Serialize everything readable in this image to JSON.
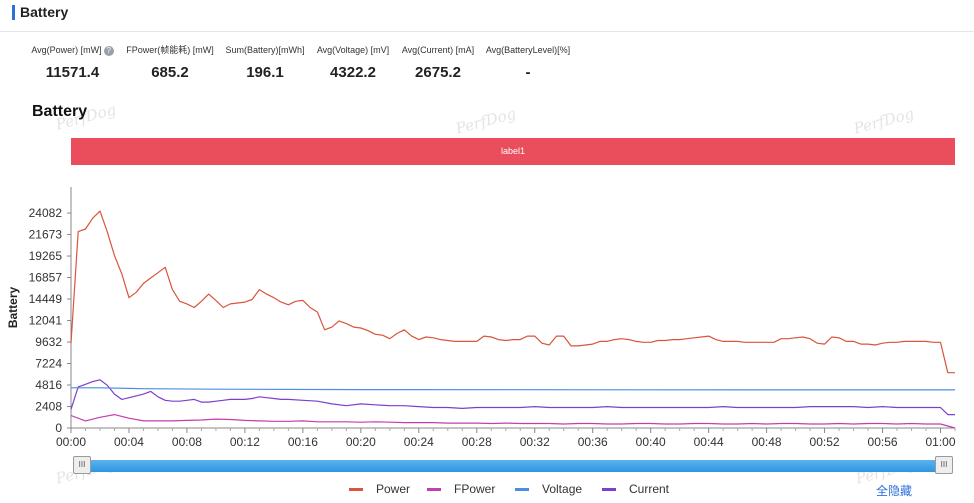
{
  "header": {
    "title": "Battery"
  },
  "stats": [
    {
      "label": "Avg(Power) [mW]",
      "value": "11571.4",
      "help": true
    },
    {
      "label": "FPower(帧能耗) [mW]",
      "value": "685.2"
    },
    {
      "label": "Sum(Battery)[mWh]",
      "value": "196.1"
    },
    {
      "label": "Avg(Voltage) [mV]",
      "value": "4322.2"
    },
    {
      "label": "Avg(Current) [mA]",
      "value": "2675.2"
    },
    {
      "label": "Avg(BatteryLevel)[%]",
      "value": "-"
    }
  ],
  "help_icon_glyph": "?",
  "watermark_text": "PerfDog",
  "label_band": {
    "text": "label1",
    "color": "#ea4d5c"
  },
  "chart_data": {
    "type": "line",
    "title": "Battery",
    "ylabel": "Battery",
    "xlabel": "",
    "x_ticks": [
      "00:00",
      "00:04",
      "00:08",
      "00:12",
      "00:16",
      "00:20",
      "00:24",
      "00:28",
      "00:32",
      "00:36",
      "00:40",
      "00:44",
      "00:48",
      "00:52",
      "00:56",
      "01:00"
    ],
    "y_ticks": [
      0,
      2408,
      4816,
      7224,
      9632,
      12041,
      14449,
      16857,
      19265,
      21673,
      24082
    ],
    "ylim": [
      0,
      27000
    ],
    "xlim_seconds": [
      0,
      61
    ],
    "grid": false,
    "legend_position": "bottom",
    "series": [
      {
        "name": "Power",
        "color": "#d9553b",
        "x": [
          0,
          0.5,
          1,
          1.5,
          2,
          2.5,
          3,
          3.5,
          4,
          4.5,
          5,
          5.5,
          6,
          6.5,
          7,
          7.5,
          8,
          8.5,
          9,
          9.5,
          10,
          10.5,
          11,
          11.5,
          12,
          12.5,
          13,
          13.5,
          14,
          14.5,
          15,
          15.5,
          16,
          16.5,
          17,
          17.5,
          18,
          18.5,
          19,
          19.5,
          20,
          20.5,
          21,
          21.5,
          22,
          22.5,
          23,
          23.5,
          24,
          24.5,
          25,
          25.5,
          26,
          26.5,
          27,
          27.5,
          28,
          28.5,
          29,
          29.5,
          30,
          30.5,
          31,
          31.5,
          32,
          32.5,
          33,
          33.5,
          34,
          34.5,
          35,
          35.5,
          36,
          36.5,
          37,
          37.5,
          38,
          38.5,
          39,
          39.5,
          40,
          40.5,
          41,
          41.5,
          42,
          42.5,
          43,
          43.5,
          44,
          44.5,
          45,
          45.5,
          46,
          46.5,
          47,
          47.5,
          48,
          48.5,
          49,
          49.5,
          50,
          50.5,
          51,
          51.5,
          52,
          52.5,
          53,
          53.5,
          54,
          54.5,
          55,
          55.5,
          56,
          56.5,
          57,
          57.5,
          58,
          58.5,
          59,
          59.5,
          60,
          60.5,
          61
        ],
        "values": [
          9500,
          22000,
          22300,
          23500,
          24300,
          22000,
          19300,
          17300,
          14600,
          15200,
          16200,
          16800,
          17400,
          18000,
          15500,
          14200,
          13900,
          13500,
          14200,
          15000,
          14300,
          13500,
          13900,
          14000,
          14100,
          14400,
          15500,
          15000,
          14600,
          14100,
          13800,
          14200,
          14300,
          13500,
          13000,
          11000,
          11300,
          12000,
          11700,
          11300,
          11200,
          10900,
          10500,
          10400,
          10000,
          10600,
          11000,
          10300,
          9900,
          10200,
          10100,
          9900,
          9800,
          9700,
          9700,
          9700,
          9700,
          10300,
          10200,
          9900,
          9800,
          9900,
          9900,
          10300,
          10300,
          9500,
          9300,
          10300,
          10300,
          9200,
          9200,
          9300,
          9400,
          9700,
          9700,
          9900,
          10000,
          9900,
          9700,
          9600,
          9600,
          9800,
          9800,
          9900,
          9900,
          10000,
          10100,
          10200,
          10300,
          9900,
          9700,
          9700,
          9700,
          9600,
          9600,
          9600,
          9600,
          9600,
          10000,
          10000,
          10100,
          10200,
          10000,
          9500,
          9400,
          10200,
          10100,
          9700,
          9700,
          9400,
          9400,
          9300,
          9500,
          9600,
          9600,
          9700,
          9700,
          9700,
          9700,
          9600,
          9600,
          6200,
          6200
        ]
      },
      {
        "name": "FPower",
        "color": "#c23fb0",
        "x": [
          0,
          1,
          2,
          3,
          4,
          5,
          6,
          7,
          8,
          9,
          10,
          11,
          12,
          13,
          14,
          15,
          16,
          17,
          18,
          19,
          20,
          21,
          22,
          23,
          24,
          25,
          26,
          27,
          28,
          29,
          30,
          31,
          32,
          33,
          34,
          35,
          36,
          37,
          38,
          39,
          40,
          41,
          42,
          43,
          44,
          45,
          46,
          47,
          48,
          49,
          50,
          51,
          52,
          53,
          54,
          55,
          56,
          57,
          58,
          59,
          60,
          61
        ],
        "values": [
          1400,
          800,
          1200,
          1500,
          1100,
          800,
          800,
          800,
          850,
          900,
          1000,
          950,
          850,
          800,
          750,
          750,
          800,
          700,
          700,
          700,
          650,
          700,
          650,
          600,
          600,
          600,
          550,
          550,
          550,
          500,
          550,
          500,
          500,
          500,
          450,
          500,
          500,
          450,
          450,
          500,
          500,
          450,
          450,
          500,
          500,
          450,
          450,
          500,
          450,
          500,
          500,
          450,
          450,
          500,
          450,
          500,
          500,
          450,
          500,
          450,
          450,
          0
        ]
      },
      {
        "name": "Voltage",
        "color": "#4a8ee6",
        "x": [
          0,
          2,
          5,
          10,
          20,
          30,
          40,
          50,
          61
        ],
        "values": [
          4500,
          4500,
          4400,
          4350,
          4300,
          4290,
          4280,
          4270,
          4270
        ]
      },
      {
        "name": "Current",
        "color": "#7b3fcf",
        "x": [
          0,
          0.5,
          1,
          1.5,
          2,
          2.5,
          3,
          3.5,
          4,
          4.5,
          5,
          5.5,
          6,
          6.5,
          7,
          7.5,
          8,
          8.5,
          9,
          9.5,
          10,
          10.5,
          11,
          11.5,
          12,
          12.5,
          13,
          13.5,
          14,
          14.5,
          15,
          16,
          17,
          18,
          19,
          20,
          21,
          22,
          23,
          24,
          25,
          26,
          27,
          28,
          29,
          30,
          31,
          32,
          33,
          34,
          35,
          36,
          37,
          38,
          39,
          40,
          41,
          42,
          43,
          44,
          45,
          46,
          47,
          48,
          49,
          50,
          51,
          52,
          53,
          54,
          55,
          56,
          57,
          58,
          59,
          60,
          60.5,
          61
        ],
        "values": [
          2100,
          4600,
          4900,
          5200,
          5400,
          4800,
          3800,
          3200,
          3400,
          3600,
          3800,
          4100,
          3500,
          3100,
          3000,
          3000,
          3100,
          3200,
          2900,
          2900,
          3000,
          3100,
          3200,
          3200,
          3200,
          3300,
          3500,
          3400,
          3300,
          3200,
          3200,
          3100,
          3000,
          2700,
          2500,
          2700,
          2600,
          2500,
          2500,
          2400,
          2300,
          2300,
          2200,
          2300,
          2300,
          2300,
          2300,
          2400,
          2300,
          2300,
          2300,
          2300,
          2400,
          2300,
          2300,
          2300,
          2300,
          2300,
          2300,
          2300,
          2400,
          2300,
          2300,
          2300,
          2300,
          2300,
          2400,
          2400,
          2400,
          2400,
          2300,
          2400,
          2300,
          2300,
          2300,
          2300,
          1500,
          1500
        ]
      }
    ]
  },
  "slider": {
    "left_glyph": "III",
    "right_glyph": "III"
  },
  "legend_hide_all": "全隐藏"
}
